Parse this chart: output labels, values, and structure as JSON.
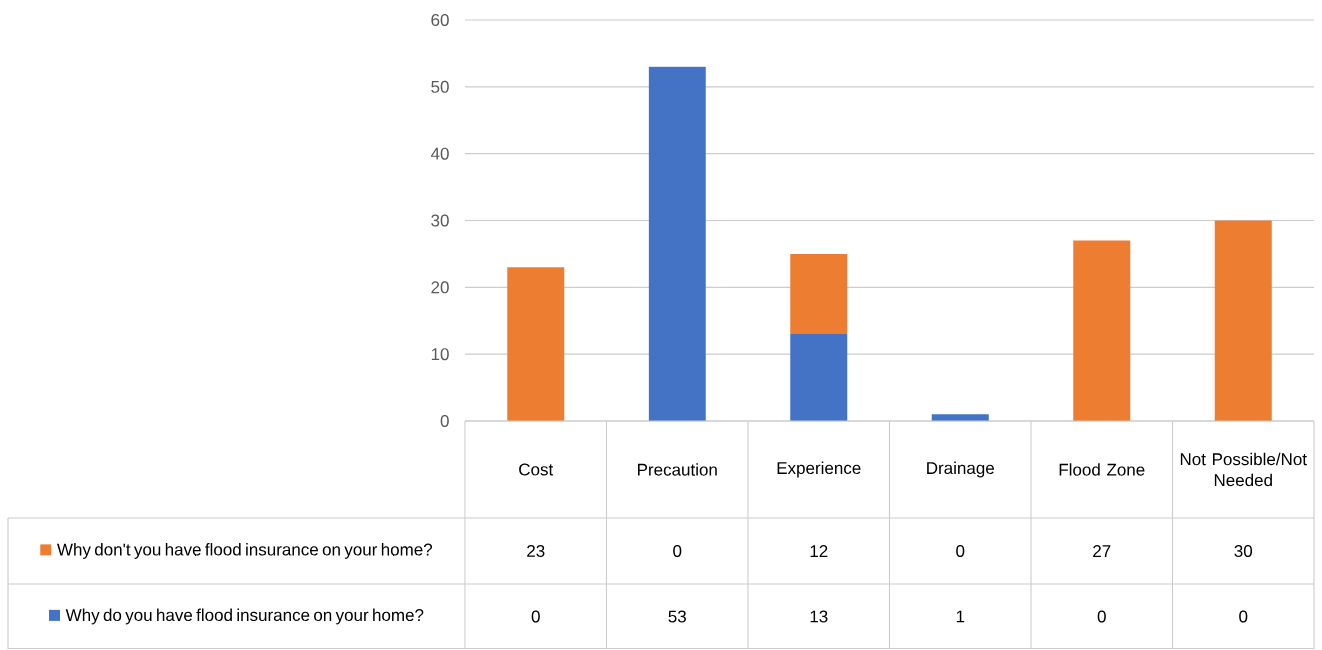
{
  "chart_data": {
    "type": "bar",
    "stacked": true,
    "categories": [
      "Cost",
      "Precaution",
      "Experience",
      "Drainage",
      "Flood Zone",
      "Not Possible/Not Needed"
    ],
    "series": [
      {
        "name": "Why do you have flood insurance on your home?",
        "color": "#4472c4",
        "values": [
          0,
          53,
          13,
          1,
          0,
          0
        ]
      },
      {
        "name": "Why don't you have flood insurance on your home?",
        "color": "#ed7d31",
        "values": [
          23,
          0,
          12,
          0,
          27,
          30
        ]
      }
    ],
    "ylim": [
      0,
      60
    ],
    "yticks": [
      0,
      10,
      20,
      30,
      40,
      50,
      60
    ],
    "grid": "y",
    "legend": "bottom",
    "data_labels": true
  }
}
